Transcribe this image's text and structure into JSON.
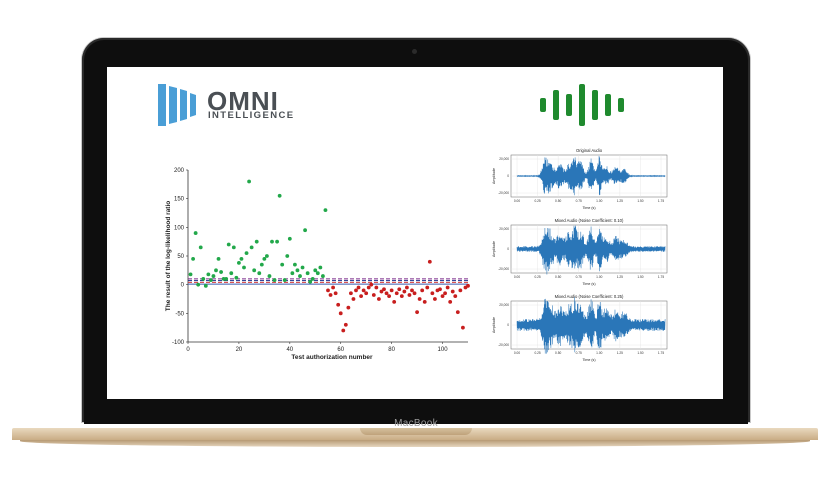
{
  "device": {
    "brand_label": "MacBook"
  },
  "logo": {
    "word": "OMNI",
    "subword": "INTELLIGENCE",
    "icon": "omni-bars-icon",
    "color": "#4a4f54",
    "accent": "#4a9ed6"
  },
  "audio_icon": {
    "icon": "sound-wave-icon",
    "color": "#1f8a2e"
  },
  "chart_data": [
    {
      "type": "scatter",
      "title": "",
      "xlabel": "Test authorization number",
      "ylabel": "The result of the log-likelihood ratio",
      "xlim": [
        0,
        110
      ],
      "ylim": [
        -100,
        200
      ],
      "xticks": [
        "0",
        "20",
        "40",
        "60",
        "80",
        "100"
      ],
      "yticks": [
        "200",
        "150",
        "100",
        "50",
        "0",
        "-50",
        "-100"
      ],
      "hlines": [
        {
          "y": 10,
          "color": "#7a2a8a",
          "style": "dashed"
        },
        {
          "y": 7,
          "color": "#1a2c8a",
          "style": "dashed"
        },
        {
          "y": 4,
          "color": "#d43a3a",
          "style": "dashed"
        },
        {
          "y": 1,
          "color": "#3a5ab0",
          "style": "solid"
        }
      ],
      "series": [
        {
          "color": "#22a84a",
          "points": [
            [
              1,
              18
            ],
            [
              2,
              45
            ],
            [
              3,
              90
            ],
            [
              4,
              0
            ],
            [
              5,
              65
            ],
            [
              6,
              10
            ],
            [
              7,
              -2
            ],
            [
              8,
              18
            ],
            [
              9,
              8
            ],
            [
              10,
              15
            ],
            [
              11,
              25
            ],
            [
              12,
              45
            ],
            [
              13,
              22
            ],
            [
              14,
              10
            ],
            [
              15,
              10
            ],
            [
              16,
              70
            ],
            [
              17,
              20
            ],
            [
              18,
              65
            ],
            [
              19,
              12
            ],
            [
              20,
              38
            ],
            [
              21,
              45
            ],
            [
              22,
              30
            ],
            [
              23,
              55
            ],
            [
              24,
              180
            ],
            [
              25,
              65
            ],
            [
              26,
              25
            ],
            [
              27,
              75
            ],
            [
              28,
              20
            ],
            [
              29,
              35
            ],
            [
              30,
              45
            ],
            [
              31,
              50
            ],
            [
              32,
              15
            ],
            [
              33,
              75
            ],
            [
              34,
              8
            ],
            [
              35,
              75
            ],
            [
              36,
              155
            ],
            [
              37,
              35
            ],
            [
              38,
              8
            ],
            [
              39,
              50
            ],
            [
              40,
              80
            ],
            [
              41,
              20
            ],
            [
              42,
              35
            ],
            [
              43,
              25
            ],
            [
              44,
              15
            ],
            [
              45,
              30
            ],
            [
              46,
              95
            ],
            [
              47,
              20
            ],
            [
              48,
              5
            ],
            [
              49,
              10
            ],
            [
              50,
              25
            ],
            [
              51,
              20
            ],
            [
              52,
              30
            ],
            [
              53,
              15
            ],
            [
              54,
              130
            ]
          ]
        },
        {
          "color": "#c81e1e",
          "points": [
            [
              55,
              -10
            ],
            [
              56,
              -18
            ],
            [
              57,
              -5
            ],
            [
              58,
              -15
            ],
            [
              59,
              -35
            ],
            [
              60,
              -50
            ],
            [
              61,
              -80
            ],
            [
              62,
              -70
            ],
            [
              63,
              -40
            ],
            [
              64,
              -15
            ],
            [
              65,
              -25
            ],
            [
              66,
              -10
            ],
            [
              67,
              -5
            ],
            [
              68,
              -20
            ],
            [
              69,
              -10
            ],
            [
              70,
              -15
            ],
            [
              71,
              -5
            ],
            [
              72,
              0
            ],
            [
              73,
              -18
            ],
            [
              74,
              -5
            ],
            [
              75,
              -25
            ],
            [
              76,
              -12
            ],
            [
              77,
              -8
            ],
            [
              78,
              -15
            ],
            [
              79,
              -20
            ],
            [
              80,
              -10
            ],
            [
              81,
              -30
            ],
            [
              82,
              -15
            ],
            [
              83,
              -8
            ],
            [
              84,
              -20
            ],
            [
              85,
              -12
            ],
            [
              86,
              -5
            ],
            [
              87,
              -18
            ],
            [
              88,
              -10
            ],
            [
              89,
              -15
            ],
            [
              90,
              -48
            ],
            [
              91,
              -25
            ],
            [
              92,
              -10
            ],
            [
              93,
              -30
            ],
            [
              94,
              -5
            ],
            [
              95,
              40
            ],
            [
              96,
              -15
            ],
            [
              97,
              -25
            ],
            [
              98,
              -10
            ],
            [
              99,
              -8
            ],
            [
              100,
              -20
            ],
            [
              101,
              -15
            ],
            [
              102,
              -5
            ],
            [
              103,
              -30
            ],
            [
              104,
              -12
            ],
            [
              105,
              -20
            ],
            [
              106,
              -48
            ],
            [
              107,
              -10
            ],
            [
              108,
              -75
            ],
            [
              109,
              -5
            ],
            [
              110,
              -2
            ]
          ]
        }
      ]
    },
    {
      "type": "line",
      "title": "Original Audio",
      "xlabel": "Time (s)",
      "ylabel": "Amplitude",
      "ylim": [
        -20000,
        20000
      ],
      "xticks": [
        "0.00",
        "0.25",
        "0.50",
        "0.75",
        "1.00",
        "1.25",
        "1.50",
        "1.75"
      ],
      "yticks": [
        "20,000",
        "0",
        "-20,000"
      ],
      "color": "#2a76b8"
    },
    {
      "type": "line",
      "title": "Mixed Audio (Noise Coefficient: 0.10)",
      "xlabel": "Time (s)",
      "ylabel": "Amplitude",
      "ylim": [
        -20000,
        20000
      ],
      "xticks": [
        "0.00",
        "0.25",
        "0.50",
        "0.75",
        "1.00",
        "1.25",
        "1.50",
        "1.75"
      ],
      "yticks": [
        "20,000",
        "0",
        "-20,000"
      ],
      "color": "#2a76b8"
    },
    {
      "type": "line",
      "title": "Mixed Audio (Noise Coefficient: 0.25)",
      "xlabel": "Time (s)",
      "ylabel": "Amplitude",
      "ylim": [
        -20000,
        20000
      ],
      "xticks": [
        "0.00",
        "0.25",
        "0.50",
        "0.75",
        "1.00",
        "1.25",
        "1.50",
        "1.75"
      ],
      "yticks": [
        "20,000",
        "0",
        "-20,000"
      ],
      "color": "#2a76b8"
    }
  ]
}
